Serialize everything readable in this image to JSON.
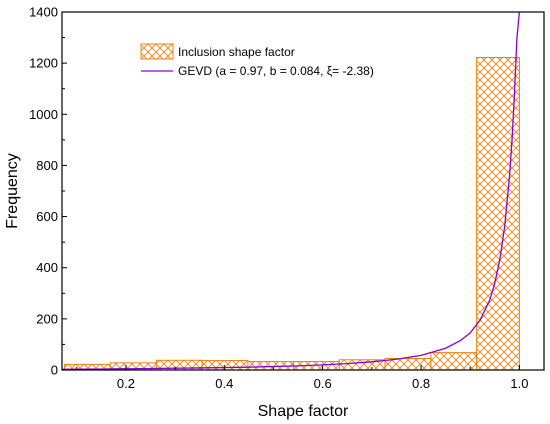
{
  "chart_data": {
    "type": "bar",
    "xlabel": "Shape factor",
    "ylabel": "Frequency",
    "xlim": [
      0.07,
      1.05
    ],
    "ylim": [
      0,
      1400
    ],
    "xticks": [
      0.2,
      0.4,
      0.6,
      0.8,
      1.0
    ],
    "xtick_labels": [
      "0.2",
      "0.4",
      "0.6",
      "0.8",
      "1.0"
    ],
    "yticks": [
      0,
      200,
      400,
      600,
      800,
      1000,
      1200,
      1400
    ],
    "ytick_labels": [
      "0",
      "200",
      "400",
      "600",
      "800",
      "1000",
      "1200",
      "1400"
    ],
    "grid": false,
    "legend_position": "top-left",
    "histogram": {
      "name": "Inclusion shape factor",
      "color": "#f07f0f",
      "bin_edges": [
        0.075,
        0.168,
        0.262,
        0.355,
        0.448,
        0.541,
        0.634,
        0.727,
        0.82,
        0.913,
        1.0
      ],
      "counts": [
        22,
        28,
        38,
        37,
        33,
        33,
        40,
        45,
        68,
        1222
      ]
    },
    "fit": {
      "name": "GEVD (a = 0.97, b = 0.084, ξ= -2.38)",
      "color": "#8a00d4",
      "x": [
        0.07,
        0.15,
        0.25,
        0.35,
        0.45,
        0.55,
        0.6,
        0.65,
        0.7,
        0.75,
        0.8,
        0.85,
        0.88,
        0.9,
        0.92,
        0.94,
        0.95,
        0.96,
        0.97,
        0.98,
        0.985,
        0.99,
        0.995,
        1.0
      ],
      "y": [
        3,
        4,
        6,
        8,
        11,
        16,
        20,
        25,
        32,
        42,
        57,
        85,
        115,
        145,
        195,
        275,
        340,
        430,
        560,
        760,
        900,
        1080,
        1300,
        1400
      ]
    }
  }
}
